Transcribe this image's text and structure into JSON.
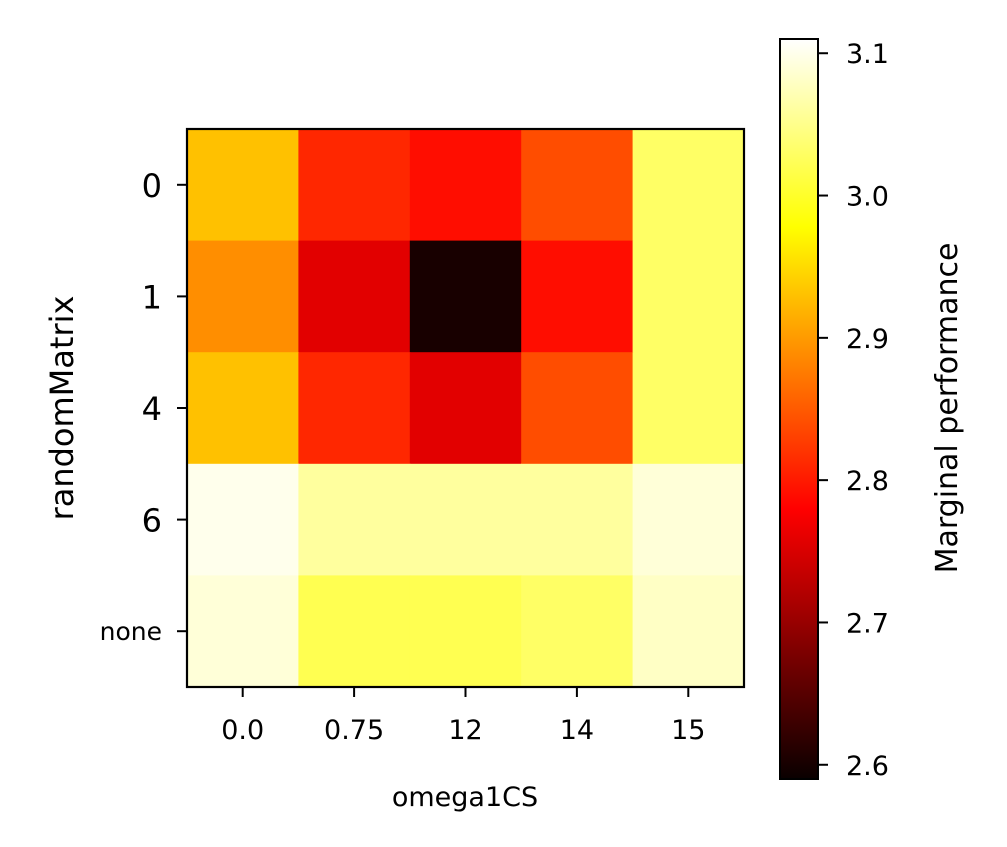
{
  "chart_data": {
    "type": "heatmap",
    "title": "",
    "xlabel": "omega1CS",
    "ylabel": "randomMatrix",
    "x_categories": [
      "0.0",
      "0.75",
      "12",
      "14",
      "15"
    ],
    "y_categories": [
      "0",
      "1",
      "4",
      "6",
      "none"
    ],
    "values": [
      [
        2.93,
        2.81,
        2.79,
        2.84,
        3.03
      ],
      [
        2.89,
        2.75,
        2.6,
        2.79,
        3.03
      ],
      [
        2.93,
        2.81,
        2.75,
        2.84,
        3.03
      ],
      [
        3.1,
        3.06,
        3.06,
        3.06,
        3.09
      ],
      [
        3.09,
        3.02,
        3.02,
        3.03,
        3.08
      ]
    ],
    "colormap": "hot",
    "colorbar": {
      "label": "Marginal performance",
      "range": [
        2.59,
        3.11
      ],
      "ticks": [
        "2.6",
        "2.7",
        "2.8",
        "2.9",
        "3.0",
        "3.1"
      ]
    }
  }
}
